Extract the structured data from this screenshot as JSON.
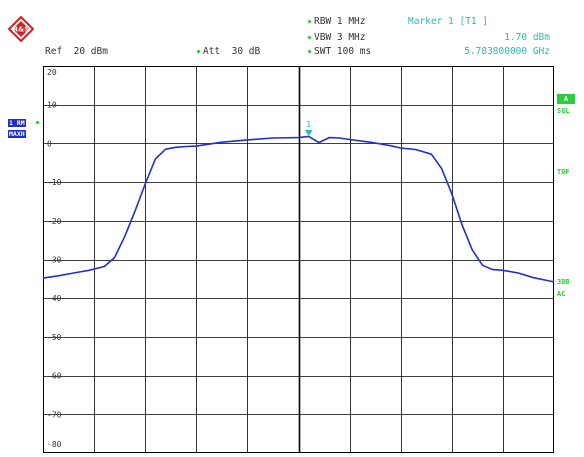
{
  "header": {
    "rbw": "RBW 1 MHz",
    "vbw": "VBW 3 MHz",
    "swt": "SWT 100 ms",
    "ref": "Ref  20 dBm",
    "att": "Att  30 dB",
    "marker_label": "Marker 1 [T1 ]",
    "marker_level": "1.70 dBm",
    "marker_freq": "5.783800000 GHz"
  },
  "left_badges": {
    "trace": "1 RM",
    "mode": "MAXH"
  },
  "right_badges": {
    "a": "A",
    "sgl": "SGL",
    "tdf": "TDF",
    "b3db": "3DB",
    "ac": "AC"
  },
  "colors": {
    "trace": "#1f2fd6",
    "grid": "#000000",
    "marker": "#2fb7b7",
    "annotation": "#2ecc40"
  },
  "chart_data": {
    "type": "line",
    "ylim": [
      -80,
      20
    ],
    "x_divisions": 10,
    "ytick_labels": [
      "20",
      "10",
      "0",
      "-10",
      "-20",
      "-30",
      "-40",
      "-50",
      "-60",
      "-70",
      "-80"
    ],
    "grid": true,
    "series": [
      {
        "x": [
          0,
          0.3,
          0.6,
          0.9,
          1.2,
          1.4,
          1.6,
          1.8,
          2.0,
          2.2,
          2.4,
          2.6,
          2.8,
          3.0,
          3.5,
          4.0,
          4.5,
          5.0,
          5.2,
          5.4,
          5.6,
          5.8,
          6.0,
          6.4,
          6.8,
          7.0,
          7.3,
          7.6,
          7.8,
          8.0,
          8.2,
          8.4,
          8.6,
          8.8,
          9.0,
          9.3,
          9.6,
          10.0
        ],
        "y": [
          -34.8,
          -34.2,
          -33.5,
          -32.8,
          -31.8,
          -29.5,
          -24,
          -17.5,
          -10.5,
          -4,
          -1.5,
          -1,
          -0.8,
          -0.7,
          0.3,
          0.9,
          1.4,
          1.5,
          1.8,
          0.2,
          1.5,
          1.4,
          1.0,
          0.3,
          -0.6,
          -1.2,
          -1.6,
          -2.8,
          -6.5,
          -13,
          -21,
          -27.5,
          -31.5,
          -32.6,
          -32.8,
          -33.5,
          -34.7,
          -35.8
        ]
      }
    ],
    "marker": {
      "label": "1",
      "x": 5.2,
      "y": 1.7
    }
  }
}
